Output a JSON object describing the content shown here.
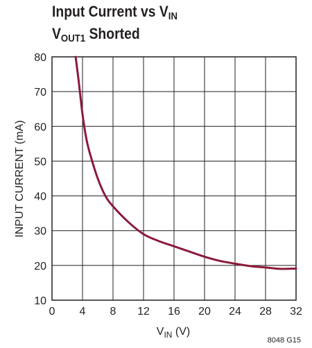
{
  "chart_data": {
    "type": "line",
    "title": {
      "main": "Input Current vs V",
      "main_sub": "IN",
      "line2": "V",
      "line2_sub": "OUT1",
      "line2_rest": " Shorted"
    },
    "xlabel": {
      "main": "V",
      "sub": "IN",
      "unit": " (V)"
    },
    "ylabel": "INPUT CURRENT (mA)",
    "xlim": [
      0,
      32
    ],
    "ylim": [
      10,
      80
    ],
    "x_ticks": [
      0,
      4,
      8,
      12,
      16,
      20,
      24,
      28,
      32
    ],
    "y_ticks": [
      10,
      20,
      30,
      40,
      50,
      60,
      70,
      80
    ],
    "grid": true,
    "colors": {
      "series": "#8b1a3a",
      "grid": "#231f20"
    },
    "series": [
      {
        "x": [
          3.1,
          3.5,
          4.0,
          4.5,
          5.0,
          6.0,
          7.0,
          8.0,
          10.0,
          12.0,
          14.0,
          16.0,
          18.0,
          20.0,
          22.0,
          24.0,
          26.0,
          28.0,
          30.0,
          32.0
        ],
        "y": [
          80,
          73,
          63.5,
          56.5,
          52,
          45,
          40,
          37,
          32.5,
          29,
          27,
          25.5,
          24,
          22.5,
          21.3,
          20.5,
          19.8,
          19.4,
          19.0,
          19.1
        ]
      }
    ],
    "figure_code": "8048 G15"
  }
}
